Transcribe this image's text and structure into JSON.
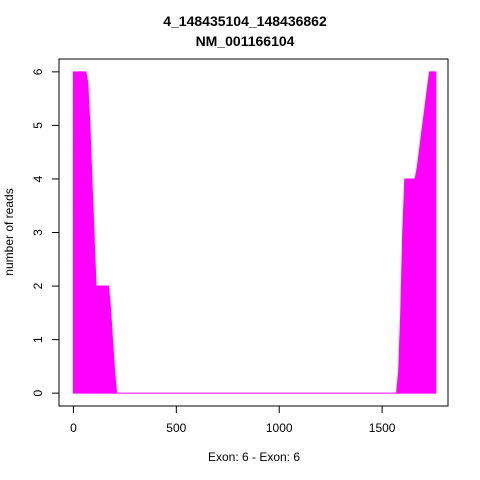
{
  "chart_data": {
    "type": "area",
    "title_line1": "4_148435104_148436862",
    "title_line2": "NM_001166104",
    "xlabel": "Exon: 6 - Exon: 6",
    "ylabel": "number of reads",
    "xlim": [
      -70,
      1820
    ],
    "ylim": [
      -0.24,
      6.24
    ],
    "x_ticks": [
      0,
      500,
      1000,
      1500
    ],
    "y_ticks": [
      0,
      1,
      2,
      3,
      4,
      5,
      6
    ],
    "fill_color": "#ff00ff",
    "series": [
      {
        "x": [
          0,
          0,
          60,
          70,
          80,
          90,
          100,
          110,
          170,
          180,
          190,
          200,
          210,
          1570,
          1580,
          1590,
          1600,
          1610,
          1660,
          1670,
          1680,
          1690,
          1700,
          1710,
          1720,
          1730,
          1760,
          1760
        ],
        "y": [
          0,
          6,
          6,
          5.8,
          5.0,
          4.0,
          3.0,
          2.0,
          2.0,
          1.6,
          1.0,
          0.4,
          0,
          0,
          0.4,
          1.5,
          3.0,
          4.0,
          4.0,
          4.2,
          4.5,
          4.8,
          5.1,
          5.4,
          5.7,
          6.0,
          6.0,
          0
        ]
      }
    ]
  }
}
